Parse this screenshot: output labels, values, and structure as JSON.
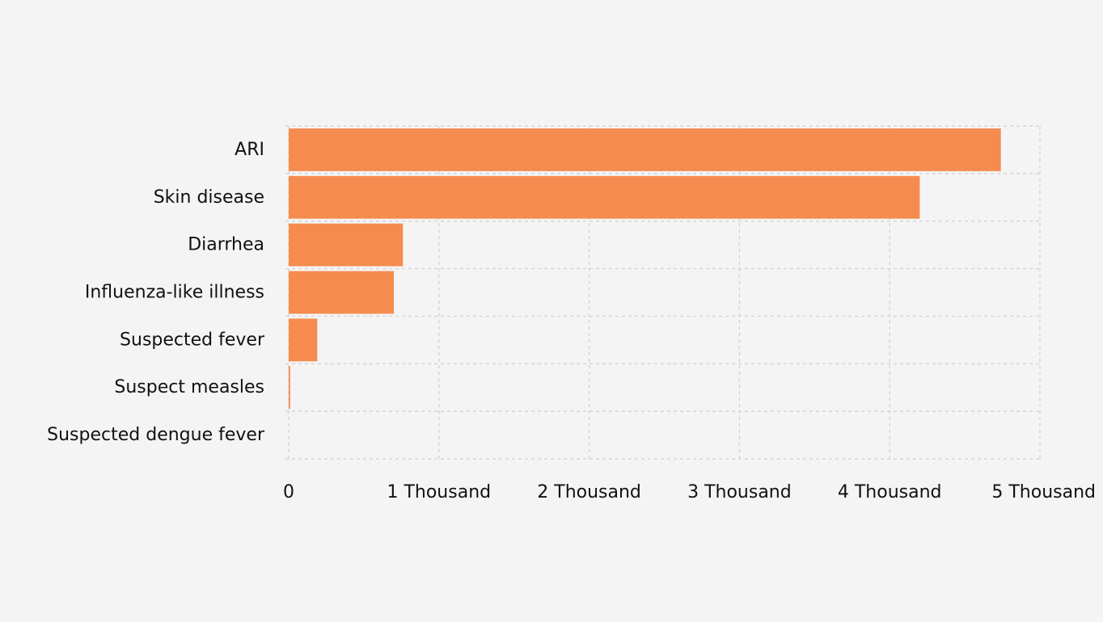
{
  "chart_data": {
    "type": "bar",
    "orientation": "horizontal",
    "categories": [
      "ARI",
      "Skin disease",
      "Diarrhea",
      "Influenza-like illness",
      "Suspected fever",
      "Suspect measles",
      "Suspected dengue fever"
    ],
    "values": [
      4740,
      4200,
      760,
      700,
      190,
      10,
      0
    ],
    "xlim": [
      0,
      5000
    ],
    "xticks": [
      0,
      1000,
      2000,
      3000,
      4000,
      5000
    ],
    "xtick_labels": [
      "0",
      "1 Thousand",
      "2 Thousand",
      "3 Thousand",
      "4 Thousand",
      "5 Thousand"
    ],
    "grid": true,
    "colors": {
      "bar": "#f58b4f",
      "grid": "#cfcfcf",
      "background": "#f4f4f4"
    }
  }
}
